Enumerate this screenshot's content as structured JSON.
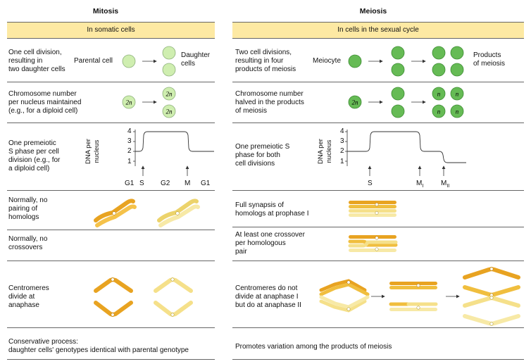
{
  "mitosis": {
    "title": "Mitosis",
    "band": "In somatic cells",
    "rows": [
      {
        "text": "One cell division,\nresulting in\ntwo daughter cells"
      },
      {
        "text": "Chromosome number\nper nucleus maintained\n(e.g., for a diploid cell)"
      },
      {
        "text": "One premeiotic\nS phase per cell\ndivision (e.g., for\na diploid cell)"
      },
      {
        "text": "Normally, no\npairing of\nhomologs"
      },
      {
        "text": "Normally, no\ncrossovers"
      },
      {
        "text": "Centromeres\ndivide at\nanaphase"
      },
      {
        "text": "Conservative process:\n  daughter cells' genotypes identical with parental genotype"
      }
    ],
    "parental_label": "Parental cell",
    "daughter_label": "Daughter\ncells",
    "ploidy_2n": "2n",
    "graph": {
      "ylabel": "DNA per\nnucleus",
      "yticks": [
        "4",
        "3",
        "2",
        "1"
      ],
      "xlabels": [
        "G1",
        "S",
        "G2",
        "M",
        "G1"
      ]
    }
  },
  "meiosis": {
    "title": "Meiosis",
    "band": "In cells in the sexual cycle",
    "rows": [
      {
        "text": "Two cell divisions,\nresulting in four\nproducts of meiosis"
      },
      {
        "text": "Chromosome number\nhalved in the products\nof meiosis"
      },
      {
        "text": "One premeiotic S\nphase for both\ncell divisions"
      },
      {
        "text": "Full synapsis of\nhomologs at prophase I"
      },
      {
        "text": "At least one crossover\nper homologous\npair"
      },
      {
        "text": "Centromeres do not\ndivide at anaphase I\nbut do at anaphase II"
      },
      {
        "text": "Promotes variation among the products of meiosis"
      }
    ],
    "meiocyte_label": "Meiocyte",
    "products_label": "Products\nof meiosis",
    "ploidy_2n": "2n",
    "ploidy_n": "n",
    "graph": {
      "ylabel": "DNA per\nnucleus",
      "yticks": [
        "4",
        "3",
        "2",
        "1"
      ],
      "xlabels": [
        "S",
        "M",
        "M"
      ],
      "xsubs": [
        "I",
        "II"
      ]
    }
  },
  "colors": {
    "band": "#fde9a3",
    "mitosis_cell": "#cfeeb0",
    "meiosis_cell": "#66bb55",
    "chrom_dark": "#e8a321",
    "chrom_light": "#f5e08a"
  }
}
